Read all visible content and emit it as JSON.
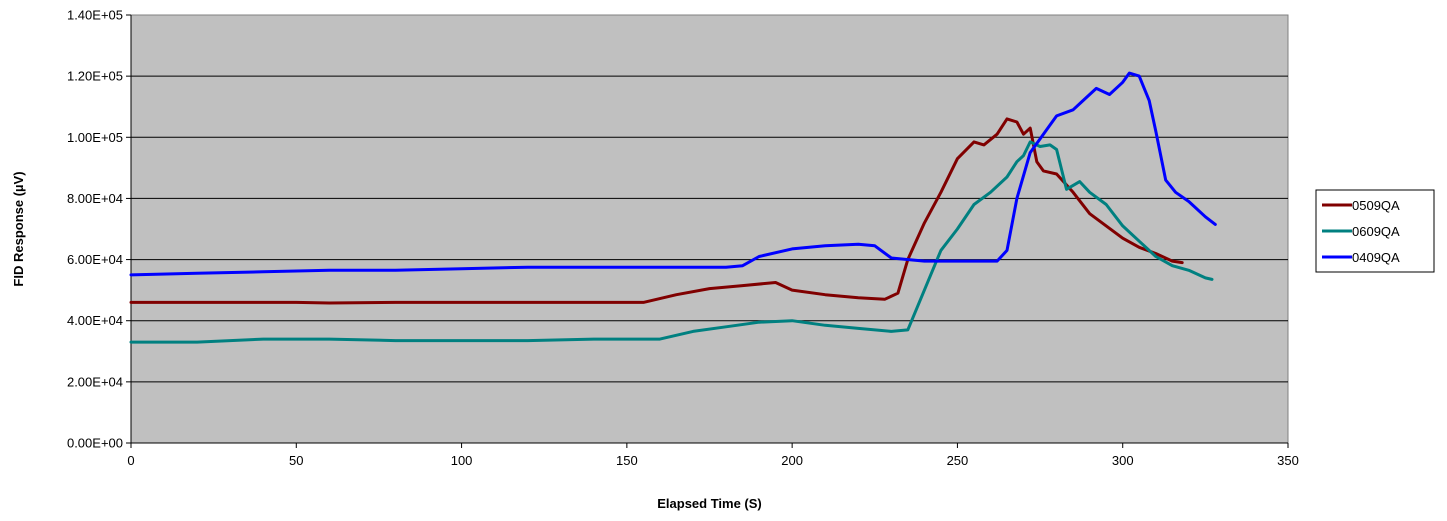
{
  "chart_data": {
    "type": "line",
    "title": "",
    "xlabel": "Elapsed Time (S)",
    "ylabel": "FID Response (µV)",
    "xlim": [
      0,
      350
    ],
    "ylim": [
      0,
      140000
    ],
    "x_ticks": [
      0,
      50,
      100,
      150,
      200,
      250,
      300,
      350
    ],
    "x_tick_labels": [
      "0",
      "50",
      "100",
      "150",
      "200",
      "250",
      "300",
      "350"
    ],
    "y_ticks": [
      0,
      20000,
      40000,
      60000,
      80000,
      100000,
      120000,
      140000
    ],
    "y_tick_labels": [
      "0.00E+00",
      "2.00E+04",
      "4.00E+04",
      "6.00E+04",
      "8.00E+04",
      "1.00E+05",
      "1.20E+05",
      "1.40E+05"
    ],
    "grid": "horizontal",
    "plot_background": "#c0c0c0",
    "legend_position": "right",
    "series": [
      {
        "name": "0509QA",
        "color": "#800000",
        "points": [
          [
            0,
            46000
          ],
          [
            20,
            46000
          ],
          [
            40,
            46000
          ],
          [
            50,
            46000
          ],
          [
            60,
            45800
          ],
          [
            80,
            46000
          ],
          [
            100,
            46000
          ],
          [
            120,
            46000
          ],
          [
            140,
            46000
          ],
          [
            155,
            46000
          ],
          [
            165,
            48500
          ],
          [
            175,
            50500
          ],
          [
            185,
            51500
          ],
          [
            195,
            52500
          ],
          [
            200,
            50000
          ],
          [
            210,
            48500
          ],
          [
            220,
            47500
          ],
          [
            228,
            47000
          ],
          [
            232,
            49000
          ],
          [
            235,
            60000
          ],
          [
            240,
            72000
          ],
          [
            245,
            82000
          ],
          [
            250,
            93000
          ],
          [
            255,
            98500
          ],
          [
            258,
            97500
          ],
          [
            262,
            101000
          ],
          [
            265,
            106000
          ],
          [
            268,
            105000
          ],
          [
            270,
            101000
          ],
          [
            272,
            103000
          ],
          [
            274,
            92000
          ],
          [
            276,
            89000
          ],
          [
            280,
            88000
          ],
          [
            285,
            82000
          ],
          [
            290,
            75000
          ],
          [
            295,
            71000
          ],
          [
            300,
            67000
          ],
          [
            305,
            64000
          ],
          [
            310,
            62000
          ],
          [
            315,
            59500
          ],
          [
            318,
            59000
          ]
        ]
      },
      {
        "name": "0609QA",
        "color": "#008080",
        "points": [
          [
            0,
            33000
          ],
          [
            20,
            33000
          ],
          [
            40,
            34000
          ],
          [
            60,
            34000
          ],
          [
            80,
            33500
          ],
          [
            100,
            33500
          ],
          [
            120,
            33500
          ],
          [
            140,
            34000
          ],
          [
            160,
            34000
          ],
          [
            170,
            36500
          ],
          [
            180,
            38000
          ],
          [
            190,
            39500
          ],
          [
            200,
            40000
          ],
          [
            210,
            38500
          ],
          [
            220,
            37500
          ],
          [
            230,
            36500
          ],
          [
            235,
            37000
          ],
          [
            240,
            50000
          ],
          [
            245,
            63000
          ],
          [
            250,
            70000
          ],
          [
            255,
            78000
          ],
          [
            260,
            82000
          ],
          [
            265,
            87000
          ],
          [
            268,
            92000
          ],
          [
            270,
            94000
          ],
          [
            272,
            98500
          ],
          [
            275,
            97000
          ],
          [
            278,
            97500
          ],
          [
            280,
            96000
          ],
          [
            283,
            83000
          ],
          [
            287,
            85500
          ],
          [
            290,
            82000
          ],
          [
            295,
            78000
          ],
          [
            300,
            71000
          ],
          [
            305,
            66000
          ],
          [
            310,
            61000
          ],
          [
            315,
            58000
          ],
          [
            320,
            56500
          ],
          [
            325,
            54000
          ],
          [
            327,
            53500
          ]
        ]
      },
      {
        "name": "0409QA",
        "color": "#0000ff",
        "points": [
          [
            0,
            55000
          ],
          [
            20,
            55500
          ],
          [
            40,
            56000
          ],
          [
            60,
            56500
          ],
          [
            80,
            56500
          ],
          [
            100,
            57000
          ],
          [
            120,
            57500
          ],
          [
            140,
            57500
          ],
          [
            160,
            57500
          ],
          [
            180,
            57500
          ],
          [
            185,
            58000
          ],
          [
            190,
            61000
          ],
          [
            200,
            63500
          ],
          [
            210,
            64500
          ],
          [
            220,
            65000
          ],
          [
            225,
            64500
          ],
          [
            230,
            60500
          ],
          [
            240,
            59500
          ],
          [
            250,
            59500
          ],
          [
            262,
            59500
          ],
          [
            265,
            63000
          ],
          [
            268,
            80000
          ],
          [
            272,
            95000
          ],
          [
            276,
            101000
          ],
          [
            280,
            107000
          ],
          [
            285,
            109000
          ],
          [
            288,
            112000
          ],
          [
            292,
            116000
          ],
          [
            296,
            114000
          ],
          [
            300,
            118000
          ],
          [
            302,
            121000
          ],
          [
            305,
            120000
          ],
          [
            308,
            112000
          ],
          [
            310,
            102000
          ],
          [
            313,
            86000
          ],
          [
            316,
            82000
          ],
          [
            320,
            79000
          ],
          [
            325,
            74000
          ],
          [
            328,
            71500
          ]
        ]
      }
    ]
  }
}
